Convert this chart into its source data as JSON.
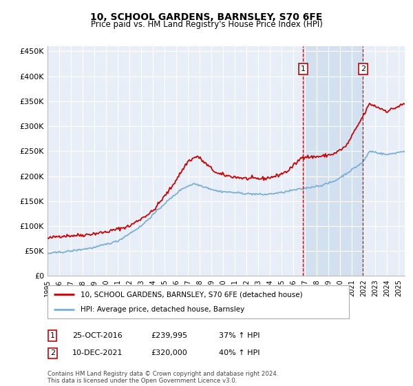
{
  "title": "10, SCHOOL GARDENS, BARNSLEY, S70 6FE",
  "subtitle": "Price paid vs. HM Land Registry's House Price Index (HPI)",
  "background_color": "#ffffff",
  "plot_bg_color": "#e8eef7",
  "grid_color": "#ffffff",
  "ylim": [
    0,
    460000
  ],
  "xlim": [
    1995.0,
    2025.5
  ],
  "yticks": [
    0,
    50000,
    100000,
    150000,
    200000,
    250000,
    300000,
    350000,
    400000,
    450000
  ],
  "ytick_labels": [
    "£0",
    "£50K",
    "£100K",
    "£150K",
    "£200K",
    "£250K",
    "£300K",
    "£350K",
    "£400K",
    "£450K"
  ],
  "legend_entry1": "10, SCHOOL GARDENS, BARNSLEY, S70 6FE (detached house)",
  "legend_entry2": "HPI: Average price, detached house, Barnsley",
  "marker1_date": "25-OCT-2016",
  "marker1_price": "£239,995",
  "marker1_pct": "37% ↑ HPI",
  "marker2_date": "10-DEC-2021",
  "marker2_price": "£320,000",
  "marker2_pct": "40% ↑ HPI",
  "footer": "Contains HM Land Registry data © Crown copyright and database right 2024.\nThis data is licensed under the Open Government Licence v3.0.",
  "line1_color": "#cc0000",
  "line2_color": "#7bafd4",
  "marker1_x": 2016.83,
  "marker2_x": 2021.94,
  "marker1_y": 239995,
  "marker2_y": 320000,
  "vline_color": "#cc0000",
  "shade_color": "#d0dff0"
}
